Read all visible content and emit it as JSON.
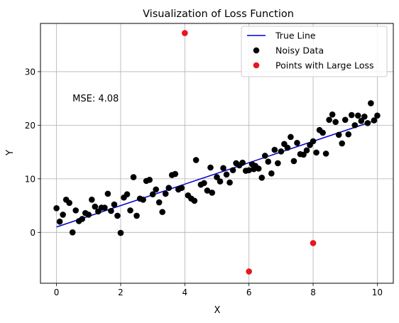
{
  "chart_data": {
    "type": "scatter",
    "title": "Visualization of Loss Function",
    "xlabel": "X",
    "ylabel": "Y",
    "xlim": [
      -0.5,
      10.5
    ],
    "ylim": [
      -9.5,
      39
    ],
    "xticks": [
      0,
      2,
      4,
      6,
      8,
      10
    ],
    "yticks": [
      0,
      10,
      20,
      30
    ],
    "grid": true,
    "legend_position": "upper right",
    "annotation": "MSE: 4.08",
    "annotation_at": [
      0.5,
      25
    ],
    "series": [
      {
        "name": "True Line",
        "kind": "line",
        "color": "#0000cc",
        "x": [
          0,
          10
        ],
        "y": [
          1,
          21
        ]
      },
      {
        "name": "Noisy Data",
        "kind": "scatter",
        "color": "#000000",
        "points": [
          [
            0.0,
            4.5
          ],
          [
            0.1,
            2.0
          ],
          [
            0.2,
            3.3
          ],
          [
            0.3,
            6.1
          ],
          [
            0.4,
            5.5
          ],
          [
            0.5,
            0.0
          ],
          [
            0.6,
            4.1
          ],
          [
            0.7,
            2.1
          ],
          [
            0.8,
            2.5
          ],
          [
            0.9,
            3.6
          ],
          [
            1.0,
            3.3
          ],
          [
            1.1,
            6.1
          ],
          [
            1.2,
            4.8
          ],
          [
            1.3,
            3.9
          ],
          [
            1.4,
            4.6
          ],
          [
            1.5,
            4.6
          ],
          [
            1.6,
            7.2
          ],
          [
            1.7,
            4.0
          ],
          [
            1.8,
            5.2
          ],
          [
            1.9,
            3.1
          ],
          [
            2.0,
            -0.1
          ],
          [
            2.1,
            6.5
          ],
          [
            2.2,
            7.1
          ],
          [
            2.3,
            4.1
          ],
          [
            2.4,
            10.3
          ],
          [
            2.5,
            3.1
          ],
          [
            2.6,
            6.3
          ],
          [
            2.7,
            6.1
          ],
          [
            2.8,
            9.6
          ],
          [
            2.9,
            9.8
          ],
          [
            3.0,
            7.1
          ],
          [
            3.1,
            8.0
          ],
          [
            3.2,
            5.6
          ],
          [
            3.3,
            3.8
          ],
          [
            3.4,
            7.2
          ],
          [
            3.5,
            8.3
          ],
          [
            3.6,
            10.7
          ],
          [
            3.7,
            10.9
          ],
          [
            3.8,
            8.0
          ],
          [
            3.9,
            8.3
          ],
          [
            4.1,
            6.9
          ],
          [
            4.2,
            6.3
          ],
          [
            4.3,
            5.9
          ],
          [
            4.35,
            13.5
          ],
          [
            4.5,
            8.9
          ],
          [
            4.6,
            9.2
          ],
          [
            4.7,
            7.8
          ],
          [
            4.8,
            12.1
          ],
          [
            4.85,
            7.4
          ],
          [
            5.0,
            10.3
          ],
          [
            5.1,
            9.5
          ],
          [
            5.2,
            12.0
          ],
          [
            5.3,
            10.8
          ],
          [
            5.4,
            9.3
          ],
          [
            5.5,
            11.6
          ],
          [
            5.6,
            12.9
          ],
          [
            5.7,
            12.5
          ],
          [
            5.8,
            13.0
          ],
          [
            5.9,
            11.5
          ],
          [
            6.0,
            11.6
          ],
          [
            6.1,
            12.7
          ],
          [
            6.15,
            11.8
          ],
          [
            6.2,
            12.4
          ],
          [
            6.3,
            11.9
          ],
          [
            6.4,
            10.2
          ],
          [
            6.5,
            14.3
          ],
          [
            6.6,
            13.2
          ],
          [
            6.7,
            11.0
          ],
          [
            6.8,
            15.4
          ],
          [
            6.9,
            12.9
          ],
          [
            7.0,
            15.1
          ],
          [
            7.1,
            16.5
          ],
          [
            7.2,
            15.8
          ],
          [
            7.3,
            17.8
          ],
          [
            7.4,
            13.3
          ],
          [
            7.5,
            16.7
          ],
          [
            7.6,
            14.6
          ],
          [
            7.7,
            14.5
          ],
          [
            7.8,
            15.3
          ],
          [
            7.9,
            16.3
          ],
          [
            8.0,
            17.0
          ],
          [
            8.1,
            14.9
          ],
          [
            8.2,
            19.1
          ],
          [
            8.3,
            18.6
          ],
          [
            8.4,
            14.7
          ],
          [
            8.5,
            21.0
          ],
          [
            8.6,
            22.0
          ],
          [
            8.7,
            20.6
          ],
          [
            8.8,
            18.2
          ],
          [
            8.9,
            16.6
          ],
          [
            9.0,
            21.0
          ],
          [
            9.1,
            18.3
          ],
          [
            9.2,
            21.9
          ],
          [
            9.3,
            20.0
          ],
          [
            9.4,
            21.8
          ],
          [
            9.5,
            20.8
          ],
          [
            9.6,
            21.6
          ],
          [
            9.7,
            20.4
          ],
          [
            9.8,
            24.1
          ],
          [
            9.9,
            20.9
          ],
          [
            10.0,
            21.8
          ]
        ]
      },
      {
        "name": "Points with Large Loss",
        "kind": "scatter",
        "color": "#e8161d",
        "points": [
          [
            4.0,
            37.2
          ],
          [
            6.0,
            -7.3
          ],
          [
            8.0,
            -2.0
          ]
        ]
      }
    ]
  }
}
